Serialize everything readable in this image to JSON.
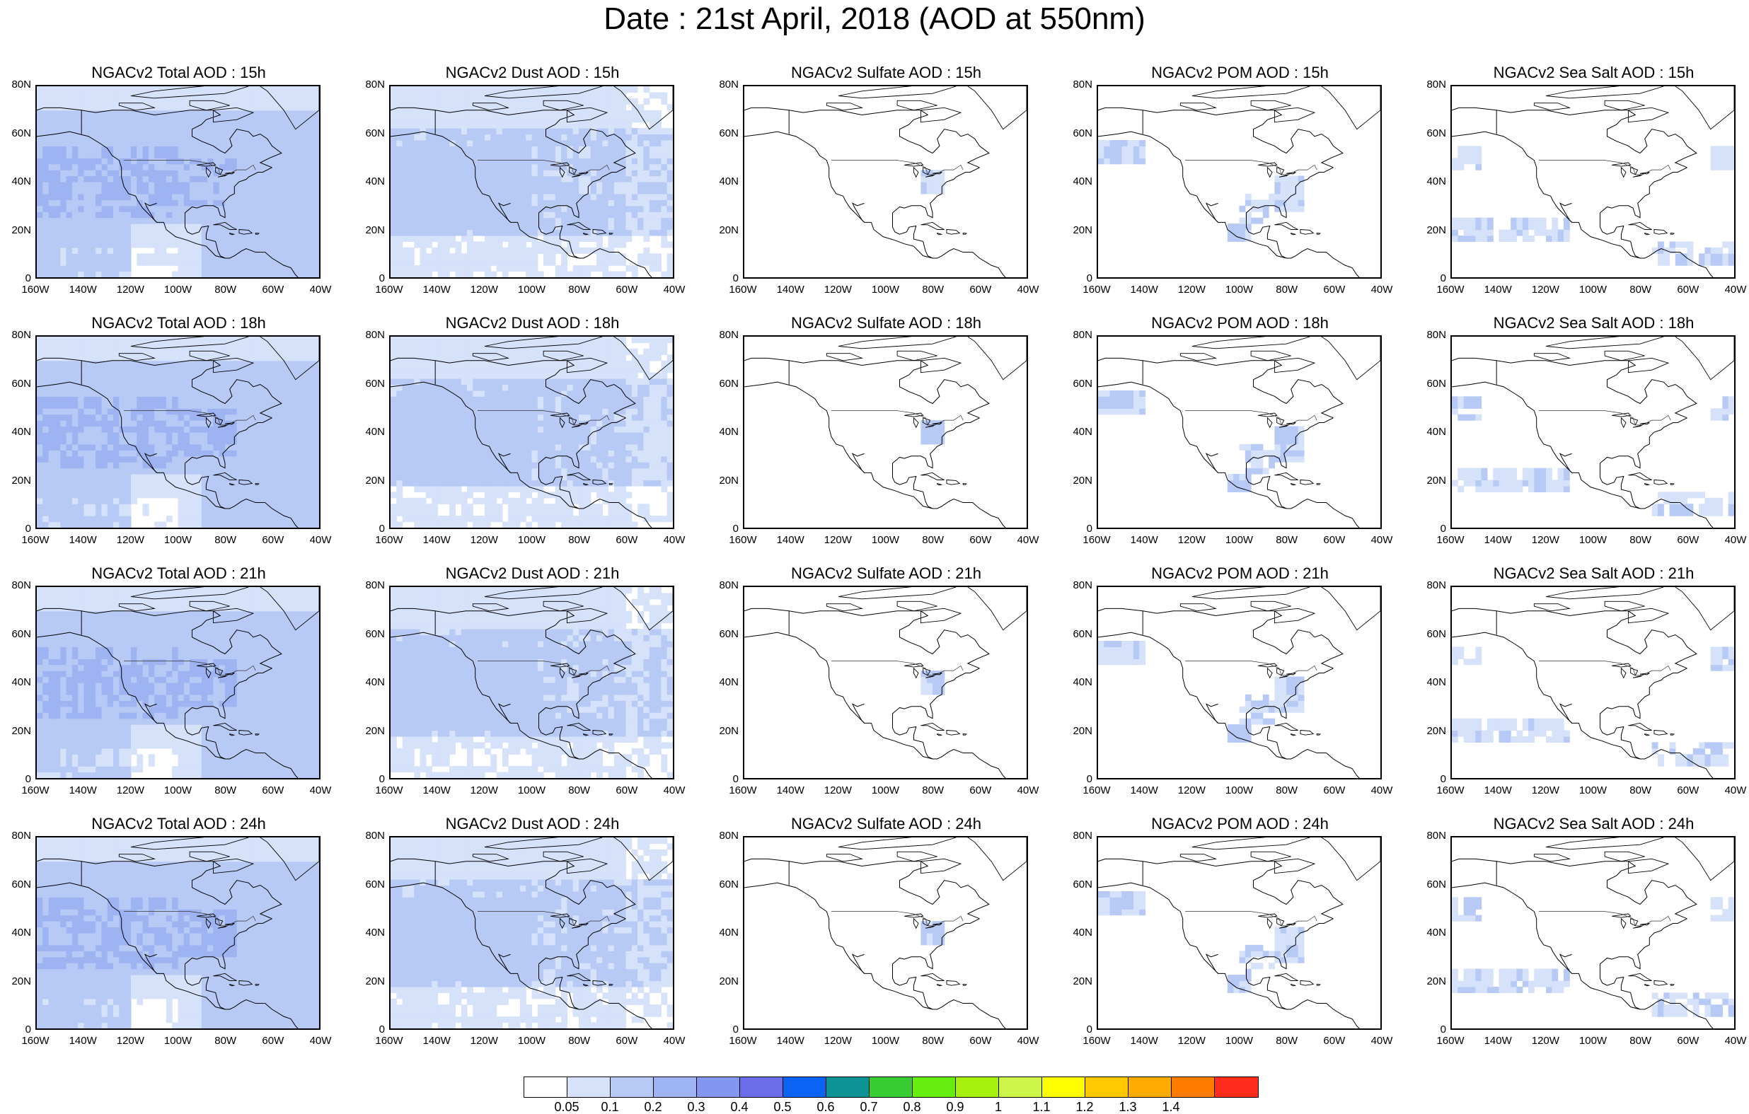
{
  "figure": {
    "title": "Date : 21st April, 2018 (AOD at 550nm)"
  },
  "axes": {
    "y_ticks": [
      "80N",
      "60N",
      "40N",
      "20N",
      "0"
    ],
    "x_ticks": [
      "160W",
      "140W",
      "120W",
      "100W",
      "80W",
      "60W",
      "40W"
    ],
    "lon_range": [
      -160,
      -40
    ],
    "lat_range": [
      0,
      80
    ]
  },
  "panels": [
    {
      "title": "NGACv2 Total AOD : 15h",
      "product": "total",
      "hour": 15
    },
    {
      "title": "NGACv2 Dust AOD : 15h",
      "product": "dust",
      "hour": 15
    },
    {
      "title": "NGACv2 Sulfate AOD : 15h",
      "product": "sulfate",
      "hour": 15
    },
    {
      "title": "NGACv2 POM AOD : 15h",
      "product": "pom",
      "hour": 15
    },
    {
      "title": "NGACv2 Sea Salt AOD : 15h",
      "product": "seasalt",
      "hour": 15
    },
    {
      "title": "NGACv2 Total AOD : 18h",
      "product": "total",
      "hour": 18
    },
    {
      "title": "NGACv2 Dust AOD : 18h",
      "product": "dust",
      "hour": 18
    },
    {
      "title": "NGACv2 Sulfate AOD : 18h",
      "product": "sulfate",
      "hour": 18
    },
    {
      "title": "NGACv2 POM AOD : 18h",
      "product": "pom",
      "hour": 18
    },
    {
      "title": "NGACv2 Sea Salt AOD : 18h",
      "product": "seasalt",
      "hour": 18
    },
    {
      "title": "NGACv2 Total AOD : 21h",
      "product": "total",
      "hour": 21
    },
    {
      "title": "NGACv2 Dust AOD : 21h",
      "product": "dust",
      "hour": 21
    },
    {
      "title": "NGACv2 Sulfate AOD : 21h",
      "product": "sulfate",
      "hour": 21
    },
    {
      "title": "NGACv2 POM AOD : 21h",
      "product": "pom",
      "hour": 21
    },
    {
      "title": "NGACv2 Sea Salt AOD : 21h",
      "product": "seasalt",
      "hour": 21
    },
    {
      "title": "NGACv2 Total AOD : 24h",
      "product": "total",
      "hour": 24
    },
    {
      "title": "NGACv2 Dust AOD : 24h",
      "product": "dust",
      "hour": 24
    },
    {
      "title": "NGACv2 Sulfate AOD : 24h",
      "product": "sulfate",
      "hour": 24
    },
    {
      "title": "NGACv2 POM AOD : 24h",
      "product": "pom",
      "hour": 24
    },
    {
      "title": "NGACv2 Sea Salt  AOD : 24h",
      "product": "seasalt",
      "hour": 24
    }
  ],
  "colorbar": {
    "colors": [
      "#ffffff",
      "#d6e1fa",
      "#b7c9f5",
      "#9eb3f2",
      "#8497f0",
      "#6b6ee8",
      "#0a63f5",
      "#0d9396",
      "#37cc32",
      "#67ee10",
      "#a6f00e",
      "#cdf54a",
      "#fefe00",
      "#ffc800",
      "#ffab00",
      "#ff7c00",
      "#fe2d1b"
    ],
    "labels": [
      "0.05",
      "0.1",
      "0.2",
      "0.3",
      "0.4",
      "0.5",
      "0.6",
      "0.7",
      "0.8",
      "0.9",
      "1",
      "1.1",
      "1.2",
      "1.3",
      "1.4"
    ]
  }
}
